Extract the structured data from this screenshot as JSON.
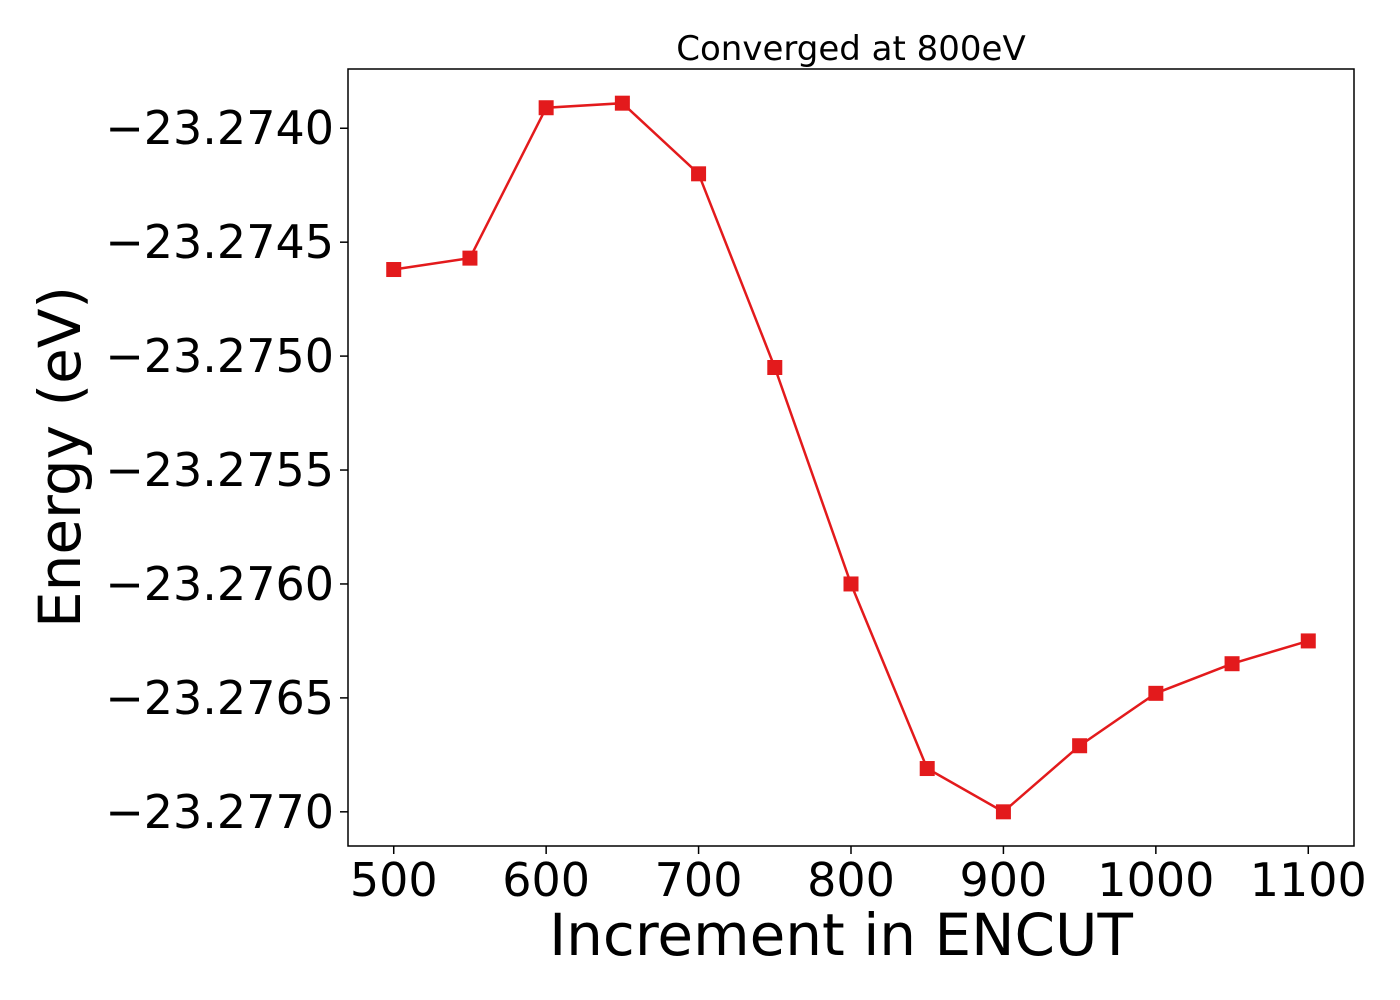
{
  "chart_data": {
    "type": "line",
    "title": "Converged at 800eV",
    "xlabel": "Increment in ENCUT",
    "ylabel": "Energy (eV)",
    "xlim": [
      470,
      1130
    ],
    "ylim": [
      -23.27715,
      -23.27374
    ],
    "x_ticks": [
      500,
      600,
      700,
      800,
      900,
      1000,
      1100
    ],
    "x_tick_labels": [
      "500",
      "600",
      "700",
      "800",
      "900",
      "1000",
      "1100"
    ],
    "y_ticks": [
      -23.274,
      -23.2745,
      -23.275,
      -23.2755,
      -23.276,
      -23.2765,
      -23.277
    ],
    "y_tick_labels": [
      "−23.2740",
      "−23.2745",
      "−23.2750",
      "−23.2755",
      "−23.2760",
      "−23.2765",
      "−23.2770"
    ],
    "grid": false,
    "series": [
      {
        "color": "#e31a1c",
        "marker": "square",
        "x": [
          500,
          550,
          600,
          650,
          700,
          750,
          800,
          850,
          900,
          950,
          1000,
          1050,
          1100
        ],
        "y": [
          -23.27462,
          -23.27457,
          -23.27391,
          -23.27389,
          -23.2742,
          -23.27505,
          -23.276,
          -23.27681,
          -23.277,
          -23.27671,
          -23.27648,
          -23.27635,
          -23.27625
        ]
      }
    ]
  }
}
